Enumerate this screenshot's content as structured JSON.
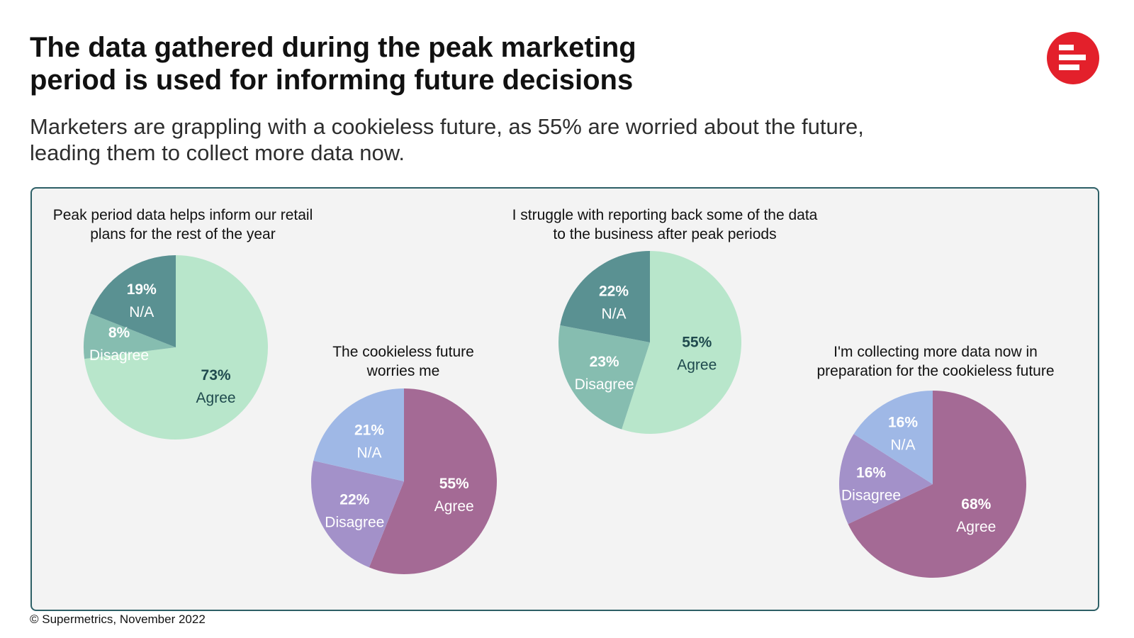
{
  "header": {
    "title_line1": "The data gathered during the peak marketing",
    "title_line2": "period is used for informing future decisions",
    "subtitle_line1": "Marketers are grappling with a cookieless future, as 55% are worried about the future,",
    "subtitle_line2": "leading them to collect more data now."
  },
  "logo": {
    "icon": "supermetrics-logo-icon",
    "color": "#e3202b"
  },
  "colors": {
    "agree_green": "#b8e6cb",
    "disagree_green": "#86bdb0",
    "na_green": "#5a9192",
    "agree_purple": "#a46a95",
    "disagree_purple": "#a391c9",
    "na_purple": "#9fb8e6",
    "panel_border": "#2d5f66",
    "panel_bg": "#f3f3f3"
  },
  "chart_data": [
    {
      "type": "pie",
      "title_line1": "Peak period data helps inform our retail",
      "title_line2": "plans for the rest of the year",
      "slices": [
        {
          "label": "Agree",
          "value": 73,
          "display": "73%",
          "color": "#b8e6cb",
          "text_color": "#1f4a4e"
        },
        {
          "label": "Disagree",
          "value": 8,
          "display": "8%",
          "color": "#86bdb0",
          "text_color": "#ffffff"
        },
        {
          "label": "N/A",
          "value": 19,
          "display": "19%",
          "color": "#5a9192",
          "text_color": "#ffffff"
        }
      ]
    },
    {
      "type": "pie",
      "title_line1": "The cookieless future",
      "title_line2": "worries me",
      "slices": [
        {
          "label": "Agree",
          "value": 55,
          "display": "55%",
          "color": "#a46a95",
          "text_color": "#ffffff"
        },
        {
          "label": "Disagree",
          "value": 22,
          "display": "22%",
          "color": "#a391c9",
          "text_color": "#ffffff"
        },
        {
          "label": "N/A",
          "value": 21,
          "display": "21%",
          "color": "#9fb8e6",
          "text_color": "#ffffff"
        }
      ]
    },
    {
      "type": "pie",
      "title_line1": "I struggle with reporting back some of the data",
      "title_line2": "to the business after peak periods",
      "slices": [
        {
          "label": "Agree",
          "value": 55,
          "display": "55%",
          "color": "#b8e6cb",
          "text_color": "#1f4a4e"
        },
        {
          "label": "Disagree",
          "value": 23,
          "display": "23%",
          "color": "#86bdb0",
          "text_color": "#ffffff"
        },
        {
          "label": "N/A",
          "value": 22,
          "display": "22%",
          "color": "#5a9192",
          "text_color": "#ffffff"
        }
      ]
    },
    {
      "type": "pie",
      "title_line1": "I'm collecting more data now in",
      "title_line2": "preparation for the cookieless future",
      "slices": [
        {
          "label": "Agree",
          "value": 68,
          "display": "68%",
          "color": "#a46a95",
          "text_color": "#ffffff"
        },
        {
          "label": "Disagree",
          "value": 16,
          "display": "16%",
          "color": "#a391c9",
          "text_color": "#ffffff"
        },
        {
          "label": "N/A",
          "value": 16,
          "display": "16%",
          "color": "#9fb8e6",
          "text_color": "#ffffff"
        }
      ]
    }
  ],
  "footer": {
    "copyright": "© Supermetrics, November 2022"
  }
}
